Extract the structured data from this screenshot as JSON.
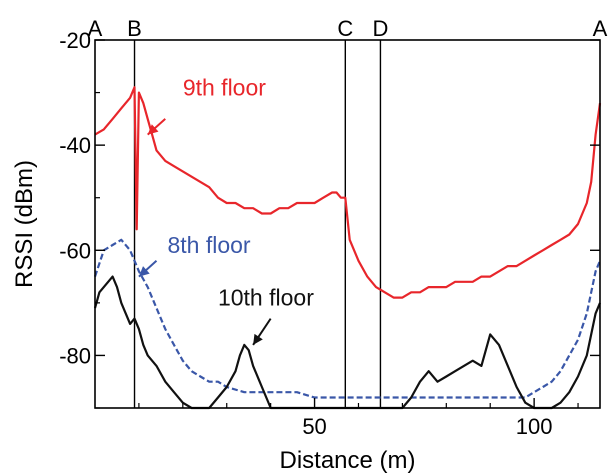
{
  "chart_data": {
    "type": "line",
    "title": "",
    "xlabel": "Distance (m)",
    "ylabel": "RSSI (dBm)",
    "xlim": [
      0,
      115
    ],
    "ylim": [
      -90,
      -20
    ],
    "xticks": [
      50,
      100
    ],
    "yticks": [
      -20,
      -40,
      -60,
      -80
    ],
    "grid": false,
    "position_markers": [
      {
        "label": "A",
        "x": 0
      },
      {
        "label": "B",
        "x": 9
      },
      {
        "label": "C",
        "x": 57
      },
      {
        "label": "D",
        "x": 65
      },
      {
        "label": "A",
        "x": 115
      }
    ],
    "series": [
      {
        "name": "9th floor",
        "color": "#e8262b",
        "dash": "solid",
        "x": [
          0,
          2,
          4,
          6,
          8,
          9,
          9.5,
          10,
          11,
          12,
          13,
          14,
          16,
          18,
          20,
          22,
          24,
          26,
          28,
          30,
          32,
          34,
          36,
          38,
          40,
          42,
          44,
          46,
          48,
          50,
          52,
          54,
          55,
          56,
          57,
          58,
          60,
          62,
          64,
          66,
          68,
          70,
          72,
          74,
          76,
          78,
          80,
          82,
          84,
          86,
          88,
          90,
          92,
          94,
          96,
          98,
          100,
          102,
          104,
          106,
          108,
          110,
          112,
          113,
          114,
          115
        ],
        "values": [
          -38,
          -37,
          -35,
          -33,
          -31,
          -29,
          -56,
          -30,
          -32,
          -35,
          -38,
          -41,
          -43,
          -44,
          -45,
          -46,
          -47,
          -48,
          -50,
          -51,
          -51,
          -52,
          -52,
          -53,
          -53,
          -52,
          -52,
          -51,
          -51,
          -51,
          -50,
          -49,
          -49,
          -50,
          -50,
          -58,
          -62,
          -65,
          -67,
          -68,
          -69,
          -69,
          -68,
          -68,
          -67,
          -67,
          -67,
          -66,
          -66,
          -66,
          -65,
          -65,
          -64,
          -63,
          -63,
          -62,
          -61,
          -60,
          -59,
          -58,
          -57,
          -55,
          -51,
          -47,
          -38,
          -32
        ]
      },
      {
        "name": "8th floor",
        "color": "#3a57a8",
        "dash": "dashed",
        "x": [
          0,
          2,
          4,
          6,
          8,
          9,
          10,
          12,
          14,
          16,
          18,
          20,
          22,
          24,
          26,
          28,
          30,
          34,
          38,
          42,
          46,
          50,
          54,
          58,
          62,
          66,
          70,
          74,
          78,
          82,
          86,
          90,
          94,
          98,
          100,
          102,
          104,
          106,
          108,
          110,
          112,
          113,
          114,
          115
        ],
        "values": [
          -65,
          -60,
          -59,
          -58,
          -60,
          -62,
          -64,
          -67,
          -71,
          -75,
          -78,
          -81,
          -83,
          -84,
          -85,
          -85,
          -86,
          -87,
          -87,
          -87,
          -87,
          -88,
          -88,
          -88,
          -88,
          -88,
          -88,
          -88,
          -88,
          -88,
          -88,
          -88,
          -88,
          -88,
          -87,
          -86,
          -85,
          -83,
          -80,
          -77,
          -72,
          -68,
          -64,
          -62
        ]
      },
      {
        "name": "10th floor",
        "color": "#111111",
        "dash": "solid",
        "x": [
          0,
          1,
          2,
          3,
          4,
          5,
          6,
          7,
          8,
          9,
          10,
          11,
          12,
          14,
          16,
          18,
          20,
          22,
          24,
          26,
          28,
          30,
          32,
          33,
          34,
          35,
          36,
          38,
          40,
          44,
          48,
          52,
          56,
          60,
          64,
          66,
          68,
          70,
          72,
          74,
          76,
          78,
          80,
          82,
          84,
          86,
          88,
          90,
          92,
          94,
          96,
          98,
          100,
          102,
          104,
          106,
          108,
          110,
          112,
          113,
          114,
          115
        ],
        "values": [
          -71,
          -68,
          -67,
          -66,
          -65,
          -67,
          -70,
          -72,
          -74,
          -73,
          -75,
          -78,
          -80,
          -82,
          -85,
          -87,
          -89,
          -90,
          -90,
          -90,
          -88,
          -86,
          -83,
          -80,
          -78,
          -79,
          -82,
          -86,
          -90,
          -90,
          -90,
          -90,
          -90,
          -90,
          -90,
          -90,
          -90,
          -90,
          -88,
          -85,
          -83,
          -85,
          -84,
          -83,
          -82,
          -81,
          -82,
          -76,
          -78,
          -82,
          -86,
          -89,
          -90,
          -90,
          -90,
          -89,
          -87,
          -84,
          -80,
          -76,
          -72,
          -70
        ]
      }
    ],
    "annotations": [
      {
        "text": "9th floor",
        "color": "#e8262b",
        "x": 20,
        "y": -29
      },
      {
        "text": "8th floor",
        "color": "#3a57a8",
        "x": 16.5,
        "y": -59
      },
      {
        "text": "10th floor",
        "color": "#111111",
        "x": 28,
        "y": -69
      }
    ]
  }
}
